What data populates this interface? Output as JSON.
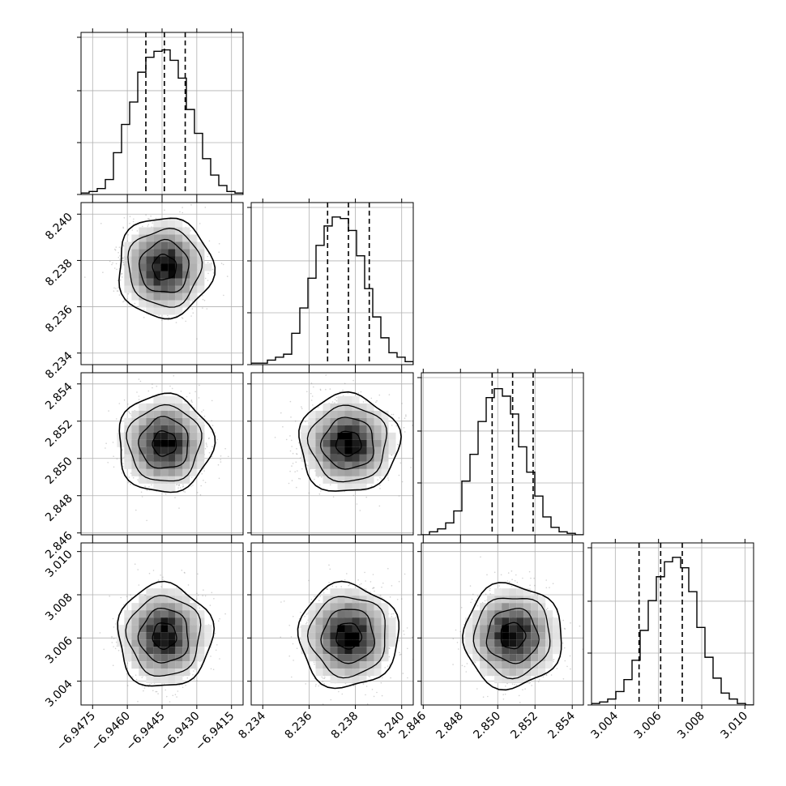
{
  "chart_data": {
    "type": "corner",
    "title": "",
    "variables": [
      {
        "xlim": [
          -6.948,
          -6.941
        ],
        "ticks": [
          -6.9475,
          -6.946,
          -6.9445,
          -6.943,
          -6.9415
        ],
        "tick_labels": [
          "−6.9475",
          "−6.9460",
          "−6.9445",
          "−6.9430",
          "−6.9415"
        ],
        "quantiles": [
          -6.9452,
          -6.9444,
          -6.9435
        ],
        "hist_counts": [
          0.01,
          0.02,
          0.04,
          0.1,
          0.28,
          0.47,
          0.62,
          0.82,
          0.92,
          0.96,
          0.97,
          0.9,
          0.78,
          0.57,
          0.41,
          0.24,
          0.13,
          0.06,
          0.02,
          0.01
        ]
      },
      {
        "xlim": [
          8.2335,
          8.2405
        ],
        "ticks": [
          8.234,
          8.236,
          8.238,
          8.24
        ],
        "tick_labels": [
          "8.234",
          "8.236",
          "8.238",
          "8.240"
        ],
        "quantiles": [
          8.2368,
          8.2377,
          8.2386
        ],
        "hist_counts": [
          0.01,
          0.01,
          0.03,
          0.05,
          0.07,
          0.21,
          0.38,
          0.58,
          0.8,
          0.93,
          0.99,
          0.98,
          0.9,
          0.73,
          0.51,
          0.32,
          0.18,
          0.08,
          0.05,
          0.02
        ]
      },
      {
        "xlim": [
          2.8459,
          2.8546
        ],
        "ticks": [
          2.846,
          2.848,
          2.85,
          2.852,
          2.854
        ],
        "tick_labels": [
          "2.846",
          "2.848",
          "2.850",
          "2.852",
          "2.854"
        ],
        "quantiles": [
          2.8497,
          2.8508,
          2.8519
        ],
        "hist_counts": [
          0.0,
          0.02,
          0.04,
          0.08,
          0.16,
          0.36,
          0.54,
          0.76,
          0.92,
          0.98,
          0.93,
          0.81,
          0.59,
          0.42,
          0.26,
          0.12,
          0.05,
          0.02,
          0.01,
          0.0
        ]
      },
      {
        "xlim": [
          3.0029,
          3.0104
        ],
        "ticks": [
          3.004,
          3.006,
          3.008,
          3.01
        ],
        "tick_labels": [
          "3.004",
          "3.006",
          "3.008",
          "3.010"
        ],
        "quantiles": [
          3.0051,
          3.0061,
          3.0071
        ],
        "hist_counts": [
          0.01,
          0.02,
          0.04,
          0.09,
          0.17,
          0.3,
          0.5,
          0.7,
          0.86,
          0.96,
          0.99,
          0.92,
          0.76,
          0.52,
          0.32,
          0.18,
          0.08,
          0.04,
          0.01,
          0.0
        ]
      }
    ],
    "contour_levels": [
      "0.118",
      "0.393",
      "0.675",
      "0.865"
    ],
    "sample_points_per_panel": 1500,
    "grid": true,
    "colors": {
      "hist_line": "#000000",
      "contour": "#000000",
      "points": "#7f7f7f",
      "grid": "#b0b0b0",
      "density_dark": "#000000",
      "density_light": "#ffffff"
    }
  }
}
